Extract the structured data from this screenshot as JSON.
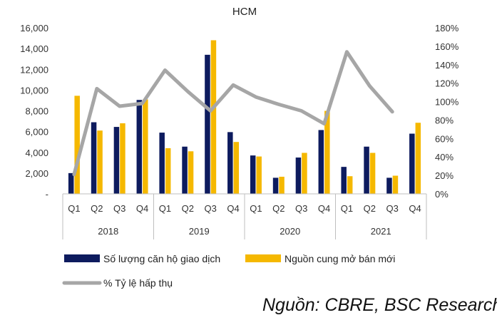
{
  "chart_data": {
    "type": "bar",
    "title": "HCM",
    "years": [
      "2018",
      "2019",
      "2020",
      "2021"
    ],
    "quarters": [
      "Q1",
      "Q2",
      "Q3",
      "Q4"
    ],
    "categories": [
      "2018 Q1",
      "2018 Q2",
      "2018 Q3",
      "2018 Q4",
      "2019 Q1",
      "2019 Q2",
      "2019 Q3",
      "2019 Q4",
      "2020 Q1",
      "2020 Q2",
      "2020 Q3",
      "2020 Q4",
      "2021 Q1",
      "2021 Q2",
      "2021 Q3",
      "2021 Q4"
    ],
    "y_left": {
      "min": 0,
      "max": 16000,
      "step": 2000,
      "tick_labels": [
        "-",
        "2,000",
        "4,000",
        "6,000",
        "8,000",
        "10,000",
        "12,000",
        "14,000",
        "16,000"
      ]
    },
    "y_right": {
      "min": 0,
      "max": 180,
      "step": 20,
      "unit": "%",
      "tick_labels": [
        "0%",
        "20%",
        "40%",
        "60%",
        "80%",
        "100%",
        "120%",
        "140%",
        "160%",
        "180%"
      ]
    },
    "series": [
      {
        "name": "Số lượng căn hộ giao dịch",
        "type": "bar",
        "axis": "left",
        "color": "#0d1b5e",
        "values": [
          2000,
          6900,
          6450,
          9050,
          5900,
          4550,
          13400,
          5950,
          3700,
          1550,
          3500,
          6150,
          2600,
          4550,
          1550,
          5800
        ]
      },
      {
        "name": "Nguồn cung mở bán mới",
        "type": "bar",
        "axis": "left",
        "color": "#f5b800",
        "values": [
          9450,
          6100,
          6800,
          9100,
          4400,
          4100,
          14800,
          5000,
          3600,
          1650,
          3950,
          8000,
          1700,
          3950,
          1750,
          6850
        ]
      },
      {
        "name": "% Tỷ lệ hấp thụ",
        "type": "line",
        "axis": "right",
        "color": "#a6a6a6",
        "values": [
          21,
          114,
          95,
          98,
          134,
          111,
          90,
          118,
          105,
          97,
          90,
          76,
          154,
          117,
          89,
          null
        ]
      }
    ],
    "legend_position": "bottom",
    "grid": false,
    "source": "Nguồn: CBRE, BSC Research"
  }
}
